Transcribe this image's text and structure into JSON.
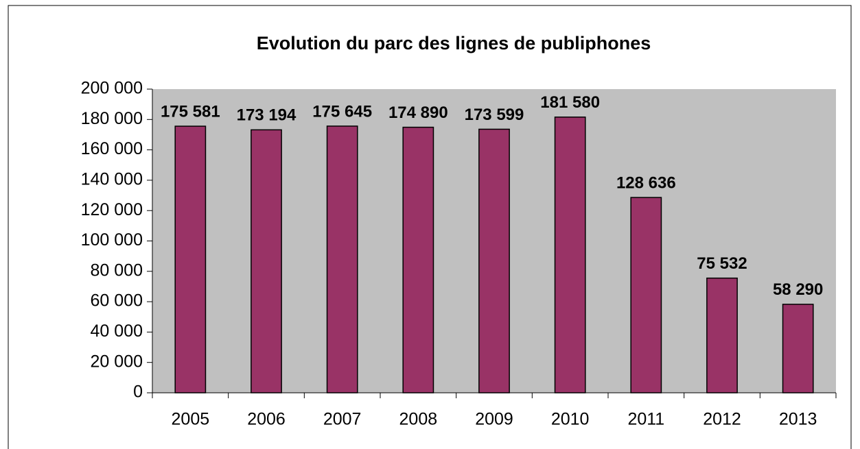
{
  "chart_data": {
    "type": "bar",
    "title": "Evolution du parc des lignes de publiphones",
    "categories": [
      "2005",
      "2006",
      "2007",
      "2008",
      "2009",
      "2010",
      "2011",
      "2012",
      "2013"
    ],
    "values": [
      175581,
      173194,
      175645,
      174890,
      173599,
      181580,
      128636,
      75532,
      58290
    ],
    "value_labels": [
      "175 581",
      "173 194",
      "175 645",
      "174 890",
      "173 599",
      "181 580",
      "128 636",
      "75 532",
      "58 290"
    ],
    "color": "#993366",
    "plot_background": "#c0c0c0",
    "ylim": [
      0,
      200000
    ],
    "yticks": [
      0,
      {
        "value": 20000,
        "label": "20 000"
      },
      {
        "value": 40000,
        "label": "40 000"
      },
      {
        "value": 60000,
        "label": "60 000"
      },
      {
        "value": 80000,
        "label": "80 000"
      },
      {
        "value": 100000,
        "label": "100 000"
      },
      {
        "value": 120000,
        "label": "120 000"
      },
      {
        "value": 140000,
        "label": "140 000"
      },
      {
        "value": 160000,
        "label": "160 000"
      },
      {
        "value": 180000,
        "label": "180 000"
      },
      {
        "value": 200000,
        "label": "200 000"
      }
    ]
  }
}
